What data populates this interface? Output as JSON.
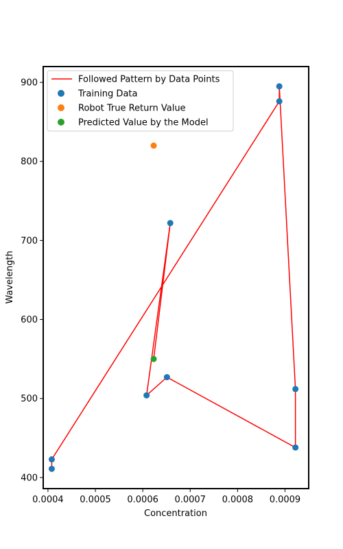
{
  "chart_data": {
    "type": "scatter",
    "xlabel": "Concentration",
    "ylabel": "Wavelength",
    "xlim": [
      0.00039,
      0.00095
    ],
    "ylim": [
      386,
      920
    ],
    "xticks": [
      0.0004,
      0.0005,
      0.0006,
      0.0007,
      0.0008,
      0.0009
    ],
    "xtick_labels": [
      "0.0004",
      "0.0005",
      "0.0006",
      "0.0007",
      "0.0008",
      "0.0009"
    ],
    "yticks": [
      400,
      500,
      600,
      700,
      800,
      900
    ],
    "ytick_labels": [
      "400",
      "500",
      "600",
      "700",
      "800",
      "900"
    ],
    "grid": false,
    "legend_position": "top-left",
    "line": {
      "name": "Followed Pattern by Data Points",
      "color": "#ff0000",
      "x": [
        0.000408,
        0.000408,
        0.000888,
        0.000888,
        0.000922,
        0.000922,
        0.000651,
        0.000608,
        0.000658,
        0.000623
      ],
      "y": [
        411,
        423,
        876,
        895,
        512,
        438,
        527,
        504,
        722,
        550
      ]
    },
    "series": [
      {
        "name": "Training Data",
        "color": "#1f77b4",
        "x": [
          0.000408,
          0.000408,
          0.000888,
          0.000888,
          0.000922,
          0.000922,
          0.000651,
          0.000608,
          0.000658
        ],
        "y": [
          411,
          423,
          876,
          895,
          512,
          438,
          527,
          504,
          722
        ]
      },
      {
        "name": "Robot True Return Value",
        "color": "#ff7f0e",
        "x": [
          0.000623
        ],
        "y": [
          820
        ]
      },
      {
        "name": "Predicted Value by the Model",
        "color": "#2ca02c",
        "x": [
          0.000623
        ],
        "y": [
          550
        ]
      }
    ]
  }
}
